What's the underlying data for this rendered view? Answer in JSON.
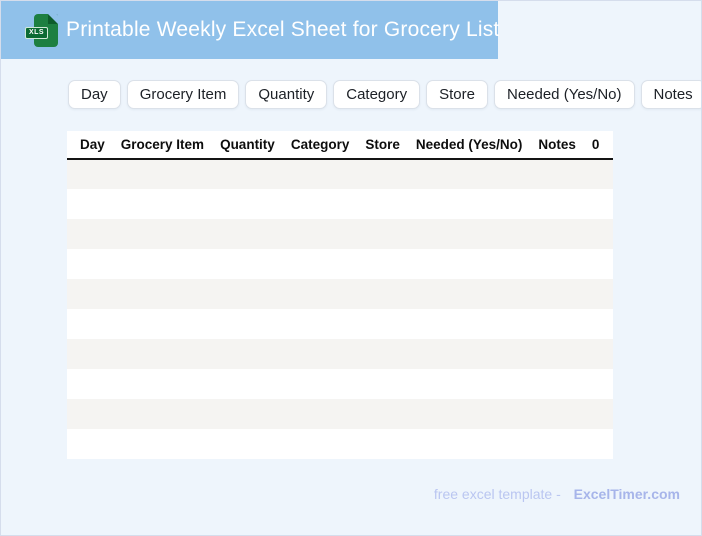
{
  "header": {
    "title": "Printable Weekly Excel Sheet for Grocery List",
    "icon_label": "XLS",
    "background": "#90c1ea"
  },
  "chips": [
    "Day",
    "Grocery Item",
    "Quantity",
    "Category",
    "Store",
    "Needed (Yes/No)",
    "Notes"
  ],
  "table": {
    "headers": [
      "Day",
      "Grocery Item",
      "Quantity",
      "Category",
      "Store",
      "Needed (Yes/No)",
      "Notes",
      "0"
    ],
    "rows": [
      [
        "",
        "",
        "",
        "",
        "",
        "",
        "",
        ""
      ],
      [
        "",
        "",
        "",
        "",
        "",
        "",
        "",
        ""
      ],
      [
        "",
        "",
        "",
        "",
        "",
        "",
        "",
        ""
      ],
      [
        "",
        "",
        "",
        "",
        "",
        "",
        "",
        ""
      ],
      [
        "",
        "",
        "",
        "",
        "",
        "",
        "",
        ""
      ],
      [
        "",
        "",
        "",
        "",
        "",
        "",
        "",
        ""
      ],
      [
        "",
        "",
        "",
        "",
        "",
        "",
        "",
        ""
      ],
      [
        "",
        "",
        "",
        "",
        "",
        "",
        "",
        ""
      ],
      [
        "",
        "",
        "",
        "",
        "",
        "",
        "",
        ""
      ],
      [
        "",
        "",
        "",
        "",
        "",
        "",
        "",
        ""
      ]
    ],
    "stripe_color": "#f5f4f2"
  },
  "footer": {
    "text": "free excel template -",
    "brand": "ExcelTimer.com"
  },
  "colors": {
    "page_background": "#eef5fc",
    "banner_blue": "#90c1ea",
    "icon_green": "#1d7f41"
  }
}
